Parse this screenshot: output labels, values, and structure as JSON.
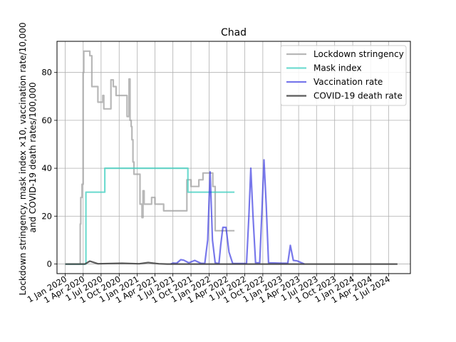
{
  "chart_data": {
    "type": "line",
    "title": "Chad",
    "ylabel_lines": [
      "Lockdown stringency, mask index ×10, vaccination rate/10,000",
      "and COVID-19 death rates/100,000"
    ],
    "xlabel": "",
    "ylim": [
      -4,
      93
    ],
    "x_range": [
      "2019-11-20",
      "2024-10-20"
    ],
    "grid": true,
    "legend_placement": "top-right",
    "x_ticks": [
      {
        "date": "2020-01-01",
        "label": "1 Jan 2020"
      },
      {
        "date": "2020-04-01",
        "label": "1 Apr 2020"
      },
      {
        "date": "2020-07-01",
        "label": "1 Jul 2020"
      },
      {
        "date": "2020-10-01",
        "label": "1 Oct 2020"
      },
      {
        "date": "2021-01-01",
        "label": "1 Jan 2021"
      },
      {
        "date": "2021-04-01",
        "label": "1 Apr 2021"
      },
      {
        "date": "2021-07-01",
        "label": "1 Jul 2021"
      },
      {
        "date": "2021-10-01",
        "label": "1 Oct 2021"
      },
      {
        "date": "2022-01-01",
        "label": "1 Jan 2022"
      },
      {
        "date": "2022-04-01",
        "label": "1 Apr 2022"
      },
      {
        "date": "2022-07-01",
        "label": "1 Jul 2022"
      },
      {
        "date": "2022-10-01",
        "label": "1 Oct 2022"
      },
      {
        "date": "2023-01-01",
        "label": "1 Jan 2023"
      },
      {
        "date": "2023-04-01",
        "label": "1 Apr 2023"
      },
      {
        "date": "2023-07-01",
        "label": "1 Jul 2023"
      },
      {
        "date": "2023-10-01",
        "label": "1 Oct 2023"
      },
      {
        "date": "2024-01-01",
        "label": "1 Jan 2024"
      },
      {
        "date": "2024-04-01",
        "label": "1 Apr 2024"
      },
      {
        "date": "2024-07-01",
        "label": "1 Jul 2024"
      }
    ],
    "y_ticks": [
      0,
      20,
      40,
      60,
      80
    ],
    "series": [
      {
        "name": "Lockdown stringency",
        "color": "#a0a0a0",
        "opacity": 0.75,
        "step": true,
        "points": [
          [
            "2020-01-01",
            0
          ],
          [
            "2020-03-15",
            0
          ],
          [
            "2020-03-17",
            16.7
          ],
          [
            "2020-03-20",
            27.8
          ],
          [
            "2020-03-26",
            33.3
          ],
          [
            "2020-04-01",
            80.0
          ],
          [
            "2020-04-04",
            88.9
          ],
          [
            "2020-05-05",
            87.0
          ],
          [
            "2020-05-15",
            74.1
          ],
          [
            "2020-06-15",
            67.6
          ],
          [
            "2020-07-10",
            70.4
          ],
          [
            "2020-07-15",
            64.8
          ],
          [
            "2020-08-20",
            76.9
          ],
          [
            "2020-09-01",
            74.1
          ],
          [
            "2020-09-15",
            70.4
          ],
          [
            "2020-11-10",
            61.6
          ],
          [
            "2020-11-20",
            77.3
          ],
          [
            "2020-11-25",
            60.0
          ],
          [
            "2020-12-01",
            57.4
          ],
          [
            "2020-12-05",
            51.9
          ],
          [
            "2020-12-10",
            42.6
          ],
          [
            "2020-12-15",
            37.5
          ],
          [
            "2021-01-15",
            25.0
          ],
          [
            "2021-01-25",
            19.4
          ],
          [
            "2021-01-30",
            30.6
          ],
          [
            "2021-02-05",
            25.0
          ],
          [
            "2021-03-15",
            27.8
          ],
          [
            "2021-04-01",
            25.0
          ],
          [
            "2021-05-15",
            22.2
          ],
          [
            "2021-09-10",
            35.2
          ],
          [
            "2021-10-01",
            32.4
          ],
          [
            "2021-11-10",
            35.2
          ],
          [
            "2021-12-01",
            38.0
          ],
          [
            "2022-01-20",
            32.4
          ],
          [
            "2022-02-01",
            13.9
          ],
          [
            "2022-05-10",
            13.9
          ]
        ]
      },
      {
        "name": "Mask index",
        "color": "#40d0c0",
        "opacity": 0.75,
        "step": true,
        "points": [
          [
            "2020-01-01",
            0
          ],
          [
            "2020-04-10",
            0
          ],
          [
            "2020-04-15",
            30
          ],
          [
            "2020-07-20",
            40
          ],
          [
            "2021-09-15",
            30
          ],
          [
            "2022-05-10",
            30
          ]
        ]
      },
      {
        "name": "Vaccination rate",
        "color": "#3030e0",
        "opacity": 0.65,
        "step": false,
        "points": [
          [
            "2021-06-20",
            0
          ],
          [
            "2021-07-01",
            0.4
          ],
          [
            "2021-07-20",
            0.3
          ],
          [
            "2021-08-10",
            1.8
          ],
          [
            "2021-08-25",
            1.6
          ],
          [
            "2021-09-20",
            0.5
          ],
          [
            "2021-10-20",
            1.5
          ],
          [
            "2021-11-20",
            0.3
          ],
          [
            "2021-12-10",
            0.2
          ],
          [
            "2021-12-25",
            10
          ],
          [
            "2022-01-06",
            38.5
          ],
          [
            "2022-01-18",
            10
          ],
          [
            "2022-02-01",
            0.5
          ],
          [
            "2022-02-20",
            0.2
          ],
          [
            "2022-03-01",
            8
          ],
          [
            "2022-03-12",
            15.3
          ],
          [
            "2022-03-28",
            15.3
          ],
          [
            "2022-04-12",
            5
          ],
          [
            "2022-05-01",
            0.2
          ],
          [
            "2022-07-10",
            0.2
          ],
          [
            "2022-07-22",
            20
          ],
          [
            "2022-08-01",
            40
          ],
          [
            "2022-08-12",
            20
          ],
          [
            "2022-08-25",
            0.5
          ],
          [
            "2022-09-15",
            0.5
          ],
          [
            "2022-09-28",
            25
          ],
          [
            "2022-10-07",
            43.5
          ],
          [
            "2022-10-18",
            25
          ],
          [
            "2022-10-30",
            0.5
          ],
          [
            "2023-01-10",
            0.3
          ],
          [
            "2023-02-05",
            0.3
          ],
          [
            "2023-02-18",
            7.8
          ],
          [
            "2023-03-05",
            1.5
          ],
          [
            "2023-03-25",
            1.3
          ],
          [
            "2023-05-01",
            0
          ]
        ]
      },
      {
        "name": "COVID-19 death rate",
        "color": "#404040",
        "opacity": 0.85,
        "step": false,
        "points": [
          [
            "2020-01-01",
            0
          ],
          [
            "2020-04-10",
            0
          ],
          [
            "2020-05-05",
            1.2
          ],
          [
            "2020-06-15",
            0.1
          ],
          [
            "2020-10-15",
            0.3
          ],
          [
            "2021-01-10",
            0.1
          ],
          [
            "2021-02-25",
            0.6
          ],
          [
            "2021-04-20",
            0.1
          ],
          [
            "2021-06-01",
            0
          ],
          [
            "2024-08-15",
            0
          ]
        ]
      }
    ]
  }
}
